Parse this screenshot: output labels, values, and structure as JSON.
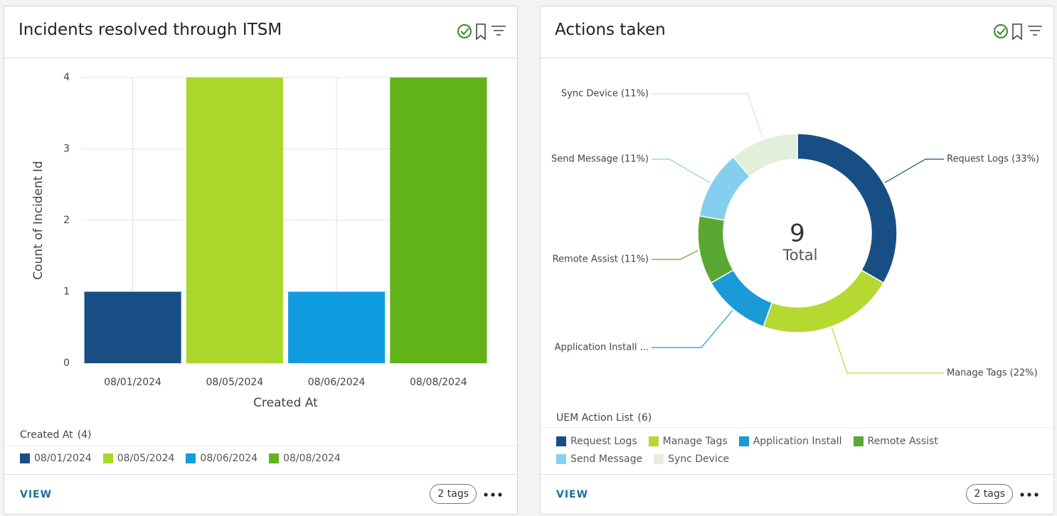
{
  "chart_data": [
    {
      "type": "bar",
      "title": "Incidents resolved through ITSM",
      "x_label": "Created At",
      "y_label": "Count of Incident Id",
      "categories": [
        "08/01/2024",
        "08/05/2024",
        "08/06/2024",
        "08/08/2024"
      ],
      "values": [
        1,
        4,
        1,
        4
      ],
      "colors": [
        "#174f85",
        "#a9d82b",
        "#109ddf",
        "#62b21a"
      ],
      "ylim": [
        0,
        4
      ],
      "yticks": [
        0,
        1,
        2,
        3,
        4
      ],
      "grid": true,
      "legend_count": "(4)",
      "link": "VIEW",
      "tags": "2 tags"
    },
    {
      "type": "donut",
      "title": "Actions taken",
      "categories": [
        "Request Logs",
        "Manage Tags",
        "Application Install",
        "Remote Assist",
        "Send Message",
        "Sync Device"
      ],
      "values": [
        33,
        22,
        11,
        11,
        11,
        11
      ],
      "value_labels": [
        "Request Logs (33%)",
        "Manage Tags (22%)",
        "Application Install ...",
        "Remote Assist (11%)",
        "Send Message (11%)",
        "Sync Device (11%)"
      ],
      "colors": [
        "#174f85",
        "#b5d930",
        "#1a9ad6",
        "#5aa831",
        "#85cfee",
        "#e2efda"
      ],
      "center_value": 9,
      "center_label": "Total",
      "legend_title": "UEM Action List",
      "legend_count": "(6)",
      "link": "VIEW",
      "tags": "2 tags"
    }
  ]
}
